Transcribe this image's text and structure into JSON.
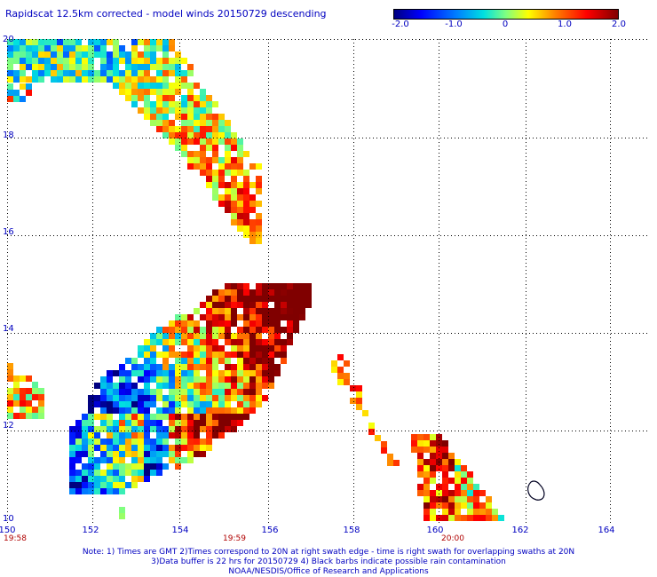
{
  "title": "Rapidscat 12.5km corrected - model winds 20150729 descending",
  "colorbar": {
    "labels": [
      {
        "text": "-2.0",
        "value": -2.0
      },
      {
        "text": "-1.0",
        "value": -1.0
      },
      {
        "text": "0",
        "value": 0
      },
      {
        "text": "1.0",
        "value": 1.0
      },
      {
        "text": "2.0",
        "value": 2.0
      }
    ],
    "min": -2.0,
    "max": 2.0
  },
  "axes": {
    "lon_range": [
      150,
      164
    ],
    "lat_range": [
      10,
      20
    ],
    "lon_ticks": [
      "150",
      "152",
      "154",
      "156",
      "158",
      "160",
      "162",
      "164"
    ],
    "lat_ticks": [
      "20",
      "18",
      "16",
      "14",
      "12",
      "10"
    ],
    "grid": "dotted"
  },
  "time_labels": [
    {
      "text": "19:58",
      "lon": 150
    },
    {
      "text": "19:59",
      "lon": 155
    },
    {
      "text": "20:00",
      "lon": 160
    }
  ],
  "notes": [
    "Note: 1) Times are GMT 2)Times correspond to 20N at right swath edge - time is right swath for overlapping swaths at 20N",
    "3)Data buffer is 22 hrs for 20150729 4) Black barbs indicate possible rain contamination",
    "NOAA/NESDIS/Office of Research and Applications"
  ],
  "colors": {
    "text": "#0000c0",
    "time": "#b00000",
    "grid": "#000000"
  }
}
